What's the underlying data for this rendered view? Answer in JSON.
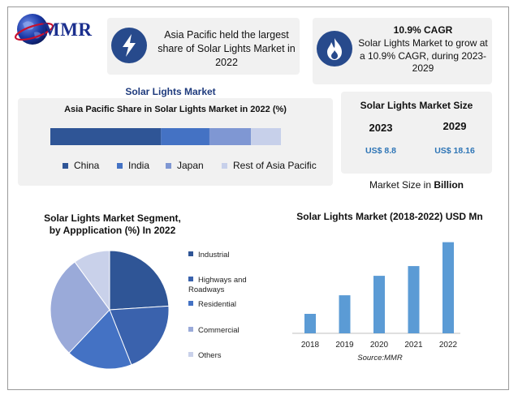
{
  "logo": {
    "text": "MMR"
  },
  "colors": {
    "c1": "#2f5596",
    "c2": "#4472c4",
    "c3": "#7f97d3",
    "c4": "#b4c0e4",
    "c5": "#cdd4ea",
    "bar": "#5b9bd5",
    "usd": "#2e75b6",
    "badge": "#274a8c",
    "title": "#1f3b7d"
  },
  "top_left": {
    "icon": "lightning-bolt-icon",
    "text": "Asia Pacific held the largest share of Solar Lights Market in 2022"
  },
  "top_right": {
    "icon": "flame-icon",
    "headline": "10.9% CAGR",
    "text": "Solar Lights Market to grow at a 10.9% CAGR, during 2023-2029"
  },
  "section_title": "Solar Lights Market",
  "market_size": {
    "title": "Solar Lights Market Size",
    "year1": "2023",
    "year2": "2029",
    "value1": "US$ 8.8",
    "value2": "US$ 18.16",
    "footer_prefix": "Market Size in ",
    "footer_bold": "Billion"
  },
  "chart_data": [
    {
      "type": "bar",
      "orientation": "horizontal-stacked",
      "title": "Asia Pacific Share in Solar Lights Market in 2022 (%)",
      "series": [
        {
          "name": "China",
          "value": 48,
          "color": "#2f5596"
        },
        {
          "name": "India",
          "value": 21,
          "color": "#4472c4"
        },
        {
          "name": "Japan",
          "value": 18,
          "color": "#7f97d3"
        },
        {
          "name": "Rest of Asia Pacific",
          "value": 13,
          "color": "#c7d0ea"
        }
      ],
      "legend_position": "bottom"
    },
    {
      "type": "pie",
      "title_line1": "Solar Lights Market Segment,",
      "title_line2": "by Appplication (%) In 2022",
      "slices": [
        {
          "name": "Industrial",
          "value": 24,
          "color": "#2f5596"
        },
        {
          "name": "Highways and Roadways",
          "value": 20,
          "color": "#3a62ad"
        },
        {
          "name": "Residential",
          "value": 18,
          "color": "#4472c4"
        },
        {
          "name": "Commercial",
          "value": 28,
          "color": "#9aaad9"
        },
        {
          "name": "Others",
          "value": 10,
          "color": "#c9d1ea"
        }
      ],
      "legend_position": "right"
    },
    {
      "type": "bar",
      "title": "Solar Lights Market (2018-2022) USD Mn",
      "categories": [
        "2018",
        "2019",
        "2020",
        "2021",
        "2022"
      ],
      "values": [
        22,
        43,
        65,
        76,
        103
      ],
      "ylim": [
        0,
        110
      ],
      "source": "Source:MMR",
      "color": "#5b9bd5"
    }
  ]
}
